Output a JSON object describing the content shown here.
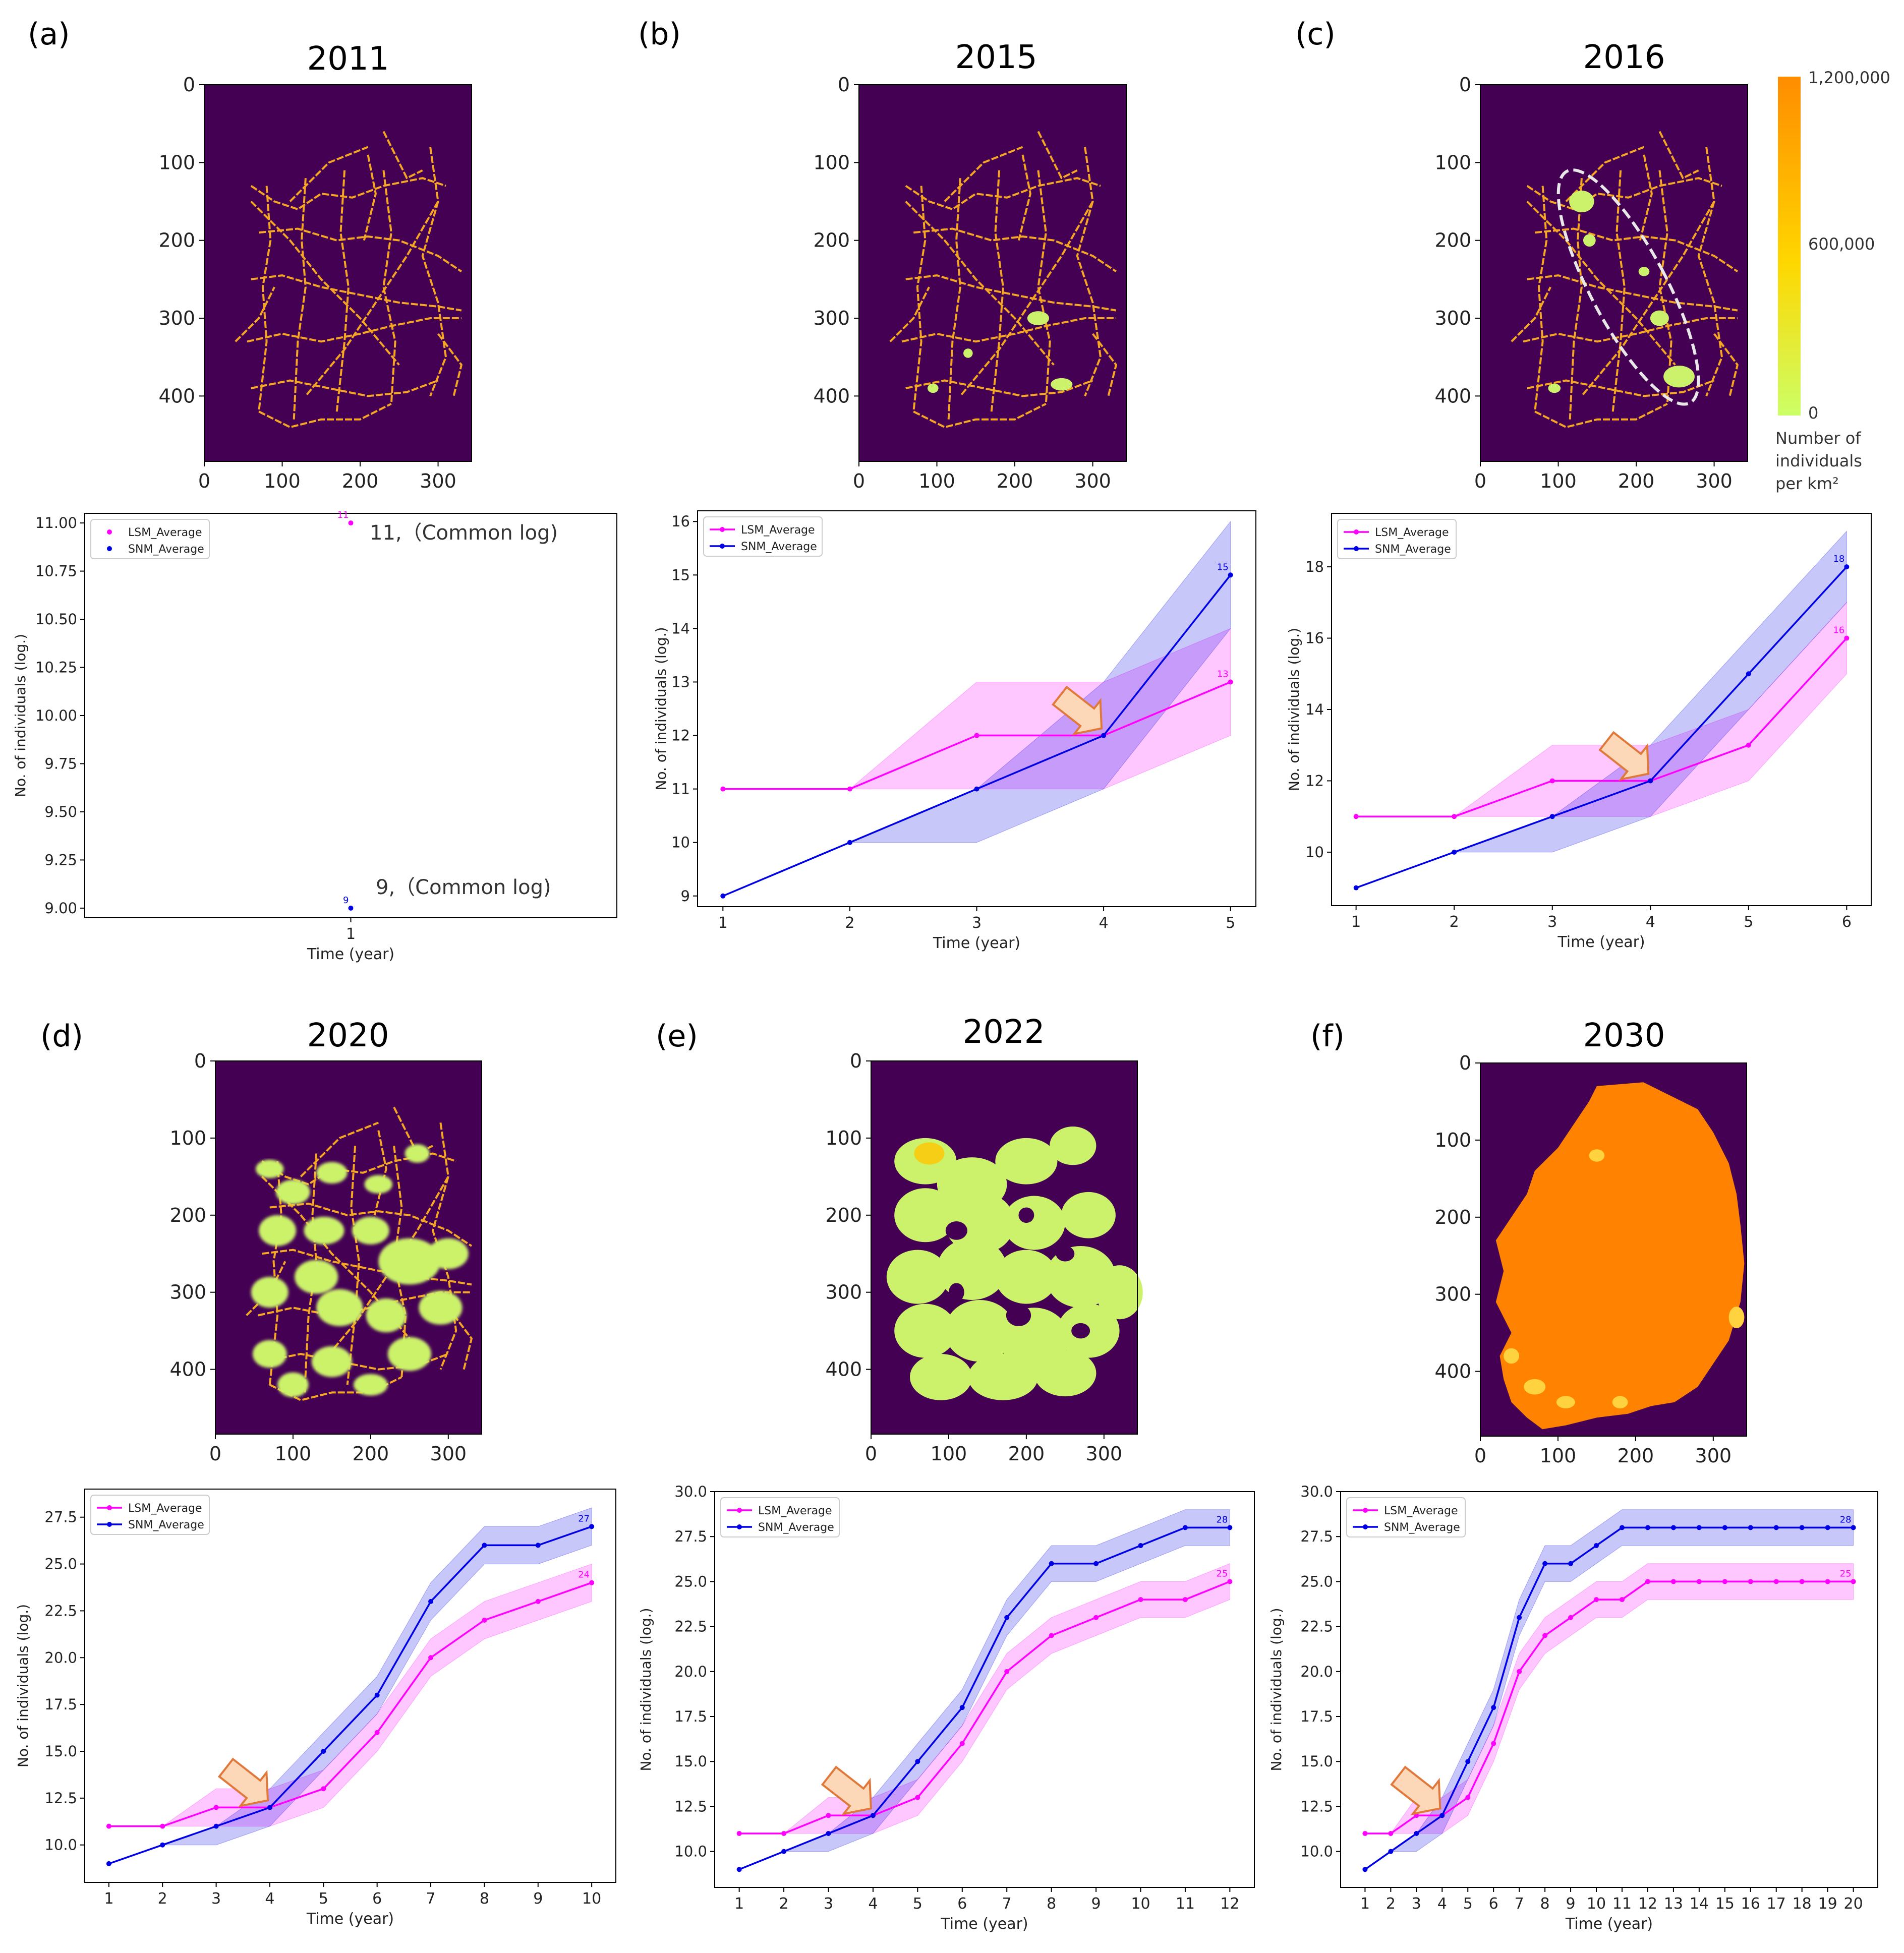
{
  "panel_labels": [
    "(a)",
    "(b)",
    "(c)",
    "(d)",
    "(e)",
    "(f)"
  ],
  "map_titles": [
    "2011",
    "2015",
    "2016",
    "2020",
    "2022",
    "2030"
  ],
  "map_axis": {
    "x_ticks": [
      "0",
      "100",
      "200",
      "300"
    ],
    "y_ticks": [
      "0",
      "100",
      "200",
      "300",
      "400"
    ]
  },
  "colorbar": {
    "labels": [
      "1,200,000",
      "600,000",
      "0"
    ],
    "caption": [
      "Number of",
      "individuals",
      "per km²"
    ],
    "colors": {
      "high": "#ff8c00",
      "mid": "#ffd700",
      "low": "#ccff66"
    }
  },
  "map_colors": {
    "background": "#440154",
    "network": "#f5a623",
    "patch": "#ccf26b",
    "dense": "#ff8300"
  },
  "annotations": {
    "lsm_note": "11,（Common log)",
    "snm_note": "9,（Common log)"
  },
  "legend": {
    "lsm": "LSM_Average",
    "snm": "SNM_Average"
  },
  "series_colors": {
    "lsm": "#ff00ff",
    "snm": "#0000e6",
    "arrow_fill": "#fcd8b8",
    "arrow_stroke": "#e0783a"
  },
  "chart_data": [
    {
      "type": "line",
      "title": "(a) 2011",
      "xlabel": "Time (year)",
      "ylabel": "No. of individuals (log.)",
      "x": [
        1
      ],
      "xlim": [
        0,
        2
      ],
      "ylim": [
        8.95,
        11.05
      ],
      "yticks": [
        "9.00",
        "9.25",
        "9.50",
        "9.75",
        "10.00",
        "10.25",
        "10.50",
        "10.75",
        "11.00"
      ],
      "ytick_values": [
        9,
        9.25,
        9.5,
        9.75,
        10,
        10.25,
        10.5,
        10.75,
        11
      ],
      "series": [
        {
          "name": "LSM_Average",
          "values": [
            11
          ],
          "lower": [
            11
          ],
          "upper": [
            11
          ],
          "end_label": "11"
        },
        {
          "name": "SNM_Average",
          "values": [
            9
          ],
          "lower": [
            9
          ],
          "upper": [
            9
          ],
          "end_label": "9"
        }
      ]
    },
    {
      "type": "line",
      "title": "(b) 2015",
      "xlabel": "Time (year)",
      "ylabel": "No. of individuals (log.)",
      "x": [
        1,
        2,
        3,
        4,
        5
      ],
      "xlim": [
        0.8,
        5.2
      ],
      "ylim": [
        8.8,
        16.2
      ],
      "yticks": [
        "9",
        "10",
        "11",
        "12",
        "13",
        "14",
        "15",
        "16"
      ],
      "ytick_values": [
        9,
        10,
        11,
        12,
        13,
        14,
        15,
        16
      ],
      "arrow_at": [
        4,
        12
      ],
      "series": [
        {
          "name": "LSM_Average",
          "values": [
            11,
            11,
            12,
            12,
            13
          ],
          "lower": [
            11,
            11,
            11,
            11,
            12
          ],
          "upper": [
            11,
            11,
            13,
            13,
            14
          ],
          "end_label": "13"
        },
        {
          "name": "SNM_Average",
          "values": [
            9,
            10,
            11,
            12,
            15
          ],
          "lower": [
            9,
            10,
            10,
            11,
            14
          ],
          "upper": [
            9,
            10,
            11,
            13,
            16
          ],
          "end_label": "15"
        }
      ]
    },
    {
      "type": "line",
      "title": "(c) 2016",
      "xlabel": "Time (year)",
      "ylabel": "No. of individuals (log.)",
      "x": [
        1,
        2,
        3,
        4,
        5,
        6
      ],
      "xlim": [
        0.75,
        6.25
      ],
      "ylim": [
        8.5,
        19.5
      ],
      "yticks": [
        "10",
        "12",
        "14",
        "16",
        "18"
      ],
      "ytick_values": [
        10,
        12,
        14,
        16,
        18
      ],
      "arrow_at": [
        4,
        12
      ],
      "series": [
        {
          "name": "LSM_Average",
          "values": [
            11,
            11,
            12,
            12,
            13,
            16
          ],
          "lower": [
            11,
            11,
            11,
            11,
            12,
            15
          ],
          "upper": [
            11,
            11,
            13,
            13,
            14,
            17
          ],
          "end_label": "16"
        },
        {
          "name": "SNM_Average",
          "values": [
            9,
            10,
            11,
            12,
            15,
            18
          ],
          "lower": [
            9,
            10,
            10,
            11,
            14,
            17
          ],
          "upper": [
            9,
            10,
            11,
            13,
            16,
            19
          ],
          "end_label": "18"
        }
      ]
    },
    {
      "type": "line",
      "title": "(d) 2020",
      "xlabel": "Time (year)",
      "ylabel": "No. of individuals (log.)",
      "x": [
        1,
        2,
        3,
        4,
        5,
        6,
        7,
        8,
        9,
        10
      ],
      "xlim": [
        0.55,
        10.45
      ],
      "ylim": [
        8.0,
        29.0
      ],
      "yticks": [
        "10.0",
        "12.5",
        "15.0",
        "17.5",
        "20.0",
        "22.5",
        "25.0",
        "27.5"
      ],
      "ytick_values": [
        10,
        12.5,
        15,
        17.5,
        20,
        22.5,
        25,
        27.5
      ],
      "arrow_at": [
        4,
        12
      ],
      "series": [
        {
          "name": "LSM_Average",
          "values": [
            11,
            11,
            12,
            12,
            13,
            16,
            20,
            22,
            23,
            24
          ],
          "lower": [
            11,
            11,
            11,
            11,
            12,
            15,
            19,
            21,
            22,
            23
          ],
          "upper": [
            11,
            11,
            13,
            13,
            14,
            17,
            21,
            23,
            24,
            25
          ],
          "end_label": "24"
        },
        {
          "name": "SNM_Average",
          "values": [
            9,
            10,
            11,
            12,
            15,
            18,
            23,
            26,
            26,
            27
          ],
          "lower": [
            9,
            10,
            10,
            11,
            14,
            17,
            22,
            25,
            25,
            26
          ],
          "upper": [
            9,
            10,
            11,
            13,
            16,
            19,
            24,
            27,
            27,
            28
          ],
          "end_label": "27"
        }
      ]
    },
    {
      "type": "line",
      "title": "(e) 2022",
      "xlabel": "Time (year)",
      "ylabel": "No. of individuals (log.)",
      "x": [
        1,
        2,
        3,
        4,
        5,
        6,
        7,
        8,
        9,
        10,
        11,
        12
      ],
      "xlim": [
        0.45,
        12.55
      ],
      "ylim": [
        8.0,
        30.0
      ],
      "yticks": [
        "10.0",
        "12.5",
        "15.0",
        "17.5",
        "20.0",
        "22.5",
        "25.0",
        "27.5",
        "30.0"
      ],
      "ytick_values": [
        10,
        12.5,
        15,
        17.5,
        20,
        22.5,
        25,
        27.5,
        30
      ],
      "arrow_at": [
        4,
        12
      ],
      "series": [
        {
          "name": "LSM_Average",
          "values": [
            11,
            11,
            12,
            12,
            13,
            16,
            20,
            22,
            23,
            24,
            24,
            25
          ],
          "lower": [
            11,
            11,
            11,
            11,
            12,
            15,
            19,
            21,
            22,
            23,
            23,
            24
          ],
          "upper": [
            11,
            11,
            13,
            13,
            14,
            17,
            21,
            23,
            24,
            25,
            25,
            26
          ],
          "end_label": "25"
        },
        {
          "name": "SNM_Average",
          "values": [
            9,
            10,
            11,
            12,
            15,
            18,
            23,
            26,
            26,
            27,
            28,
            28
          ],
          "lower": [
            9,
            10,
            10,
            11,
            14,
            17,
            22,
            25,
            25,
            26,
            27,
            27
          ],
          "upper": [
            9,
            10,
            11,
            13,
            16,
            19,
            24,
            27,
            27,
            28,
            29,
            29
          ],
          "end_label": "28"
        }
      ]
    },
    {
      "type": "line",
      "title": "(f) 2030",
      "xlabel": "Time (year)",
      "ylabel": "No. of individuals (log.)",
      "x": [
        1,
        2,
        3,
        4,
        5,
        6,
        7,
        8,
        9,
        10,
        11,
        12,
        13,
        14,
        15,
        16,
        17,
        18,
        19,
        20
      ],
      "xlim": [
        0.05,
        20.95
      ],
      "ylim": [
        8.0,
        30.0
      ],
      "yticks": [
        "10.0",
        "12.5",
        "15.0",
        "17.5",
        "20.0",
        "22.5",
        "25.0",
        "27.5",
        "30.0"
      ],
      "ytick_values": [
        10,
        12.5,
        15,
        17.5,
        20,
        22.5,
        25,
        27.5,
        30
      ],
      "arrow_at": [
        4,
        12
      ],
      "series": [
        {
          "name": "LSM_Average",
          "values": [
            11,
            11,
            12,
            12,
            13,
            16,
            20,
            22,
            23,
            24,
            24,
            25,
            25,
            25,
            25,
            25,
            25,
            25,
            25,
            25
          ],
          "lower": [
            11,
            11,
            11,
            11,
            12,
            15,
            19,
            21,
            22,
            23,
            23,
            24,
            24,
            24,
            24,
            24,
            24,
            24,
            24,
            24
          ],
          "upper": [
            11,
            11,
            13,
            13,
            14,
            17,
            21,
            23,
            24,
            25,
            25,
            26,
            26,
            26,
            26,
            26,
            26,
            26,
            26,
            26
          ],
          "end_label": "25"
        },
        {
          "name": "SNM_Average",
          "values": [
            9,
            10,
            11,
            12,
            15,
            18,
            23,
            26,
            26,
            27,
            28,
            28,
            28,
            28,
            28,
            28,
            28,
            28,
            28,
            28
          ],
          "lower": [
            9,
            10,
            10,
            11,
            14,
            17,
            22,
            25,
            25,
            26,
            27,
            27,
            27,
            27,
            27,
            27,
            27,
            27,
            27,
            27
          ],
          "upper": [
            9,
            10,
            11,
            13,
            16,
            19,
            24,
            27,
            27,
            28,
            29,
            29,
            29,
            29,
            29,
            29,
            29,
            29,
            29,
            29
          ],
          "end_label": "28"
        }
      ]
    }
  ]
}
